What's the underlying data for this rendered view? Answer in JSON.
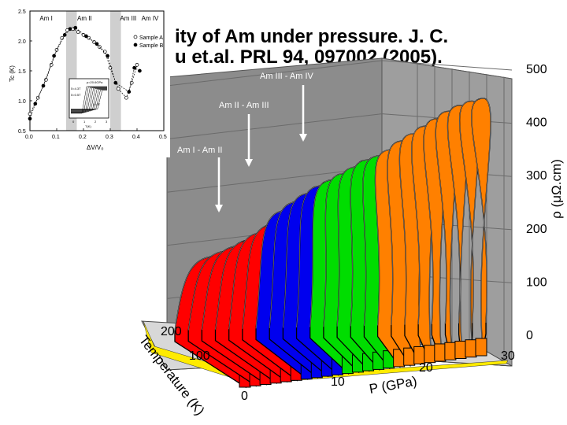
{
  "slide": {
    "title_line1": "ity of Am under pressure. J. C.",
    "title_line2": "u et.al. PRL 94, 097002 (2005)."
  },
  "chart_data": [
    {
      "type": "area",
      "chart_kind": "3d-waterfall",
      "ylabel": "ρ (μΩ.cm)",
      "xlabel": "P (GPa)",
      "zlabel": "Temperature (K)",
      "rho_ticks": [
        "0",
        "100",
        "200",
        "300",
        "400",
        "500"
      ],
      "pressure_ticks": [
        "10",
        "20",
        "30"
      ],
      "temperature_ticks": [
        "0",
        "100",
        "200"
      ],
      "rho_range": [
        0,
        500
      ],
      "pressure_range": [
        0,
        30
      ],
      "temperature_range": [
        0,
        300
      ],
      "grid": true,
      "annotations": [
        "Am I - Am II",
        "Am II - Am III",
        "Am III - Am IV"
      ],
      "phase_colors": {
        "Am I": "#ff0000",
        "Am II": "#0000ee",
        "Am III": "#00dd00",
        "Am IV": "#ff8000"
      },
      "phase_transitions_gpa": [
        7,
        11,
        15.5
      ],
      "series": [
        {
          "pressure": 1,
          "phase": "Am I",
          "rho_max": 158
        },
        {
          "pressure": 2,
          "phase": "Am I",
          "rho_max": 168
        },
        {
          "pressure": 3,
          "phase": "Am I",
          "rho_max": 178
        },
        {
          "pressure": 4,
          "phase": "Am I",
          "rho_max": 190
        },
        {
          "pressure": 5,
          "phase": "Am I",
          "rho_max": 205
        },
        {
          "pressure": 6,
          "phase": "Am I",
          "rho_max": 222
        },
        {
          "pressure": 7.5,
          "phase": "Am II",
          "rho_max": 250
        },
        {
          "pressure": 8.5,
          "phase": "Am II",
          "rho_max": 268
        },
        {
          "pressure": 9.5,
          "phase": "Am II",
          "rho_max": 285
        },
        {
          "pressure": 10.5,
          "phase": "Am II",
          "rho_max": 300
        },
        {
          "pressure": 11.5,
          "phase": "Am III",
          "rho_max": 312
        },
        {
          "pressure": 12.5,
          "phase": "Am III",
          "rho_max": 325
        },
        {
          "pressure": 13.5,
          "phase": "Am III",
          "rho_max": 338
        },
        {
          "pressure": 14.5,
          "phase": "Am III",
          "rho_max": 352
        },
        {
          "pressure": 15.2,
          "phase": "Am III",
          "rho_max": 360
        },
        {
          "pressure": 16,
          "phase": "Am IV",
          "rho_max": 372
        },
        {
          "pressure": 17,
          "phase": "Am IV",
          "rho_max": 390
        },
        {
          "pressure": 18,
          "phase": "Am IV",
          "rho_max": 405
        },
        {
          "pressure": 19,
          "phase": "Am IV",
          "rho_max": 420
        },
        {
          "pressure": 20,
          "phase": "Am IV",
          "rho_max": 435
        },
        {
          "pressure": 21,
          "phase": "Am IV",
          "rho_max": 450
        },
        {
          "pressure": 22,
          "phase": "Am IV",
          "rho_max": 462
        },
        {
          "pressure": 23,
          "phase": "Am IV",
          "rho_max": 470
        },
        {
          "pressure": 24,
          "phase": "Am IV",
          "rho_max": 475
        }
      ]
    },
    {
      "type": "scatter",
      "chart_kind": "inset",
      "xlabel": "ΔV/V₀",
      "ylabel": "Tc (K)",
      "x_ticks": [
        "0.0",
        "0.1",
        "0.2",
        "0.3",
        "0.4",
        "0.5"
      ],
      "y_ticks": [
        "0.5",
        "1.0",
        "1.5",
        "2.0",
        "2.5"
      ],
      "xlim": [
        0,
        0.5
      ],
      "ylim": [
        0.5,
        2.5
      ],
      "phase_labels": [
        "Am I",
        "Am II",
        "Am III",
        "Am IV"
      ],
      "legend": [
        "Sample A",
        "Sample B"
      ],
      "legend_position": "right",
      "series": [
        {
          "name": "Sample A",
          "marker": "open",
          "x": [
            0.0,
            0.03,
            0.06,
            0.08,
            0.1,
            0.12,
            0.14,
            0.16,
            0.18,
            0.2,
            0.22,
            0.24,
            0.26,
            0.28,
            0.3,
            0.33,
            0.36,
            0.38,
            0.4
          ],
          "y": [
            0.78,
            1.05,
            1.35,
            1.6,
            1.85,
            2.05,
            2.18,
            2.2,
            2.15,
            2.1,
            2.05,
            1.98,
            1.9,
            1.82,
            1.55,
            1.2,
            1.05,
            1.3,
            1.6
          ]
        },
        {
          "name": "Sample B",
          "marker": "filled",
          "x": [
            0.0,
            0.02,
            0.05,
            0.09,
            0.13,
            0.15,
            0.17,
            0.21,
            0.25,
            0.29,
            0.32,
            0.37,
            0.39,
            0.41
          ],
          "y": [
            0.7,
            0.95,
            1.25,
            1.75,
            2.1,
            2.2,
            2.22,
            2.08,
            1.95,
            1.75,
            1.3,
            1.15,
            1.55,
            1.5
          ]
        }
      ],
      "inner_inset": {
        "labels": [
          "p=20.6GPa",
          "δ=4.3T",
          "δ=0.5T",
          "δ=0T"
        ],
        "x_ticks": [
          "0",
          "1",
          "2",
          "3"
        ],
        "xlabel": "T(K)"
      }
    }
  ]
}
